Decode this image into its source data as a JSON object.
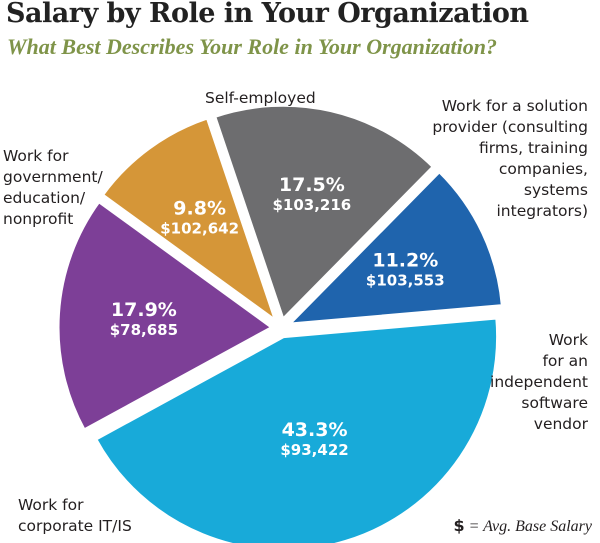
{
  "chart_data": {
    "type": "pie",
    "title": "Salary by Role in Your Organization",
    "subtitle": "What Best Describes Your Role in Your Organization?",
    "slices": [
      {
        "label": "Self-employed",
        "value": 9.8,
        "value_label": "9.8%",
        "salary": "$102,642",
        "color": "#d59638"
      },
      {
        "label": "Work for a solution\nprovider (consulting\nfirms, training\ncompanies,\nsystems\nintegrators)",
        "value": 17.5,
        "value_label": "17.5%",
        "salary": "$103,216",
        "color": "#6d6d6f"
      },
      {
        "label": "Work\nfor an\nindependent\nsoftware\nvendor",
        "value": 11.2,
        "value_label": "11.2%",
        "salary": "$103,553",
        "color": "#1f64ad"
      },
      {
        "label": "Work for\ncorporate IT/IS",
        "value": 43.3,
        "value_label": "43.3%",
        "salary": "$93,422",
        "color": "#18aad9"
      },
      {
        "label": "Work for\ngovernment/\neducation/\nnonprofit",
        "value": 17.9,
        "value_label": "17.9%",
        "salary": "$78,685",
        "color": "#7d3f97"
      }
    ],
    "legend_note": {
      "symbol": "$",
      "text": " = Avg. Base Salary"
    }
  }
}
